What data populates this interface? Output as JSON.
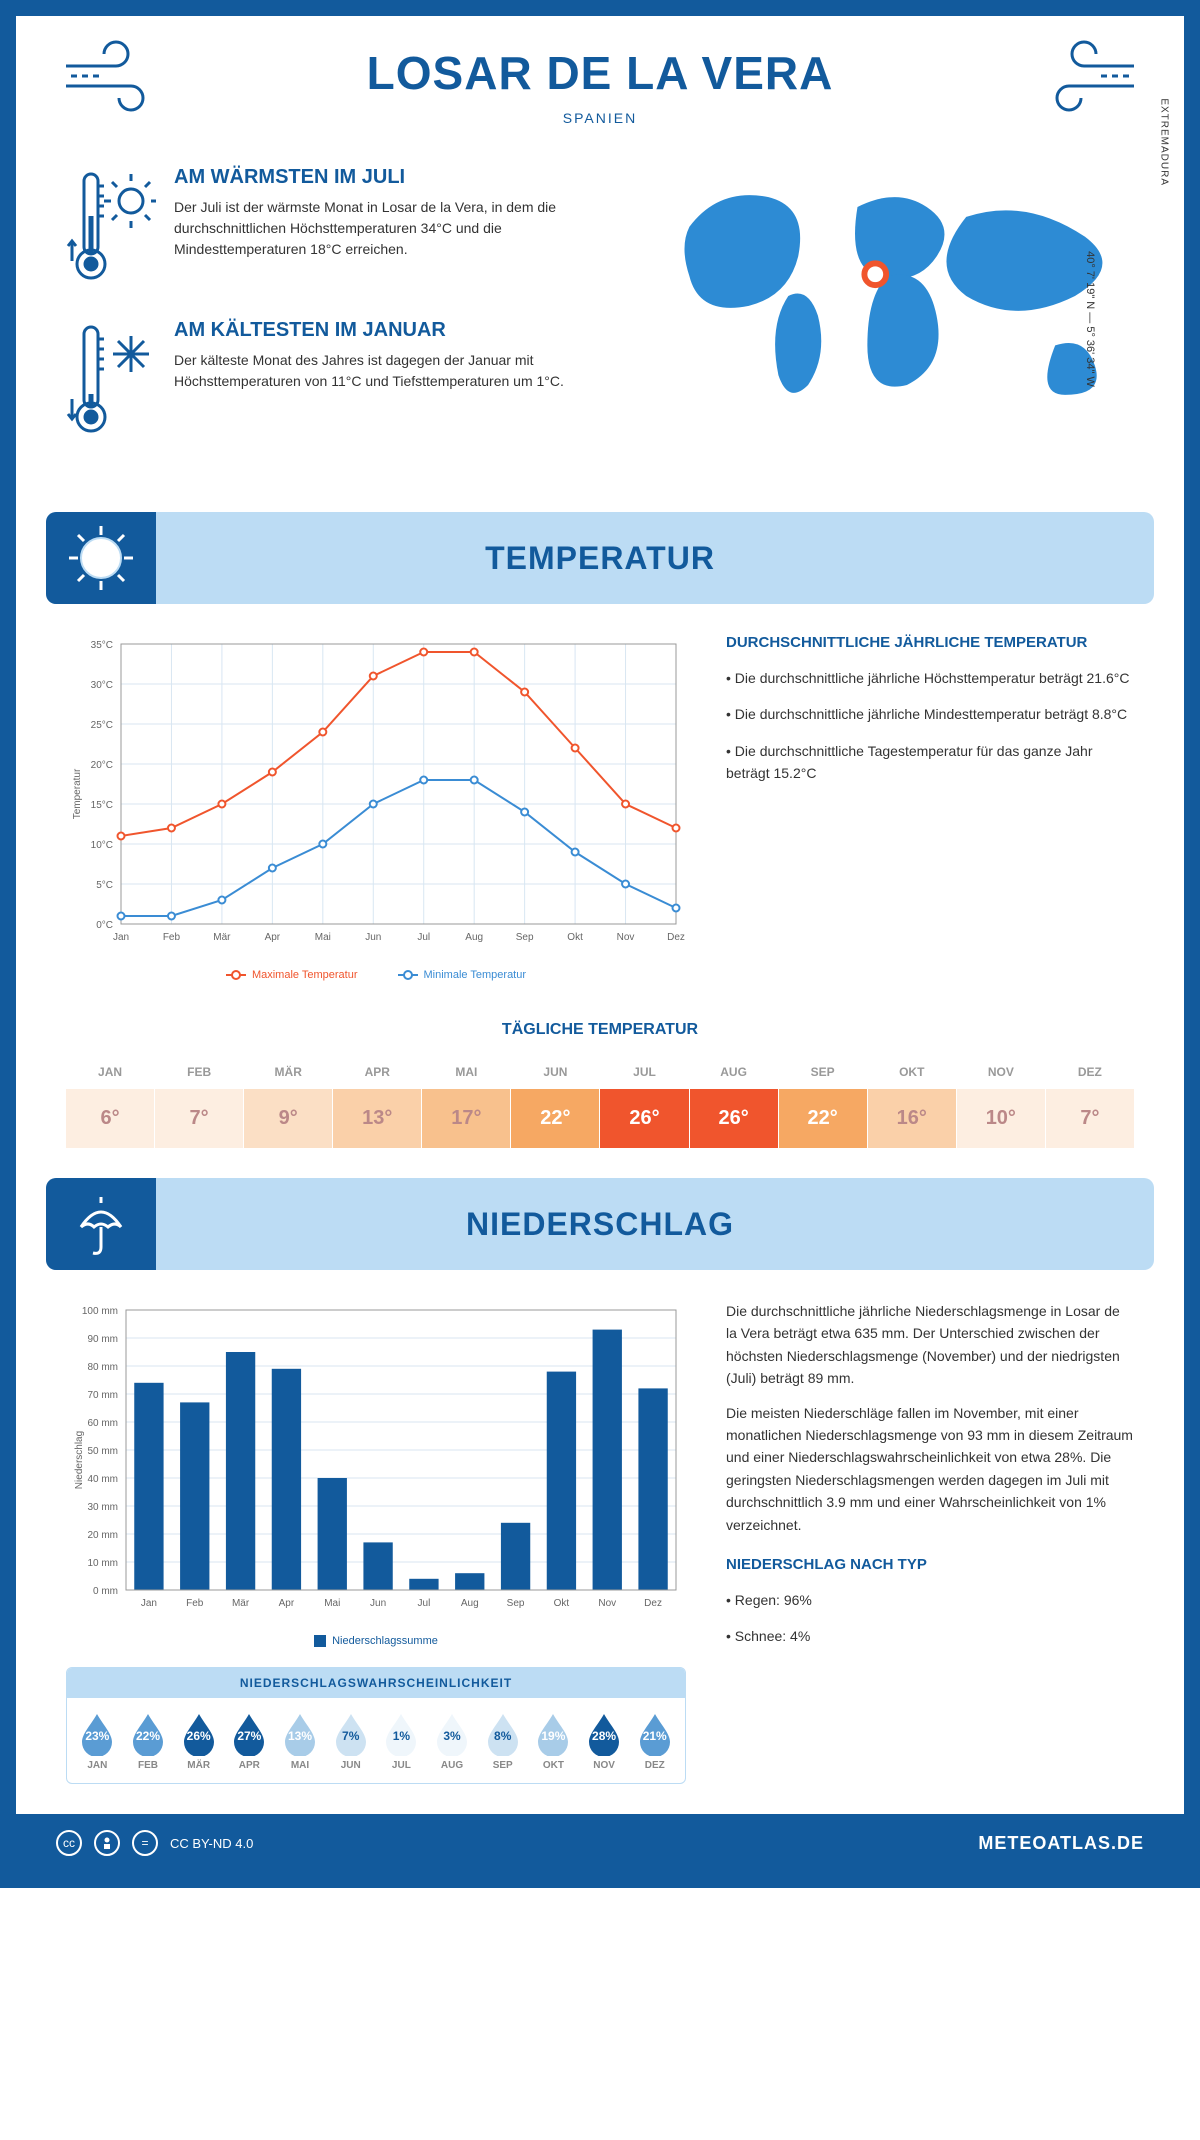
{
  "header": {
    "title": "LOSAR DE LA VERA",
    "subtitle": "SPANIEN"
  },
  "location": {
    "region": "EXTREMADURA",
    "coords": "40° 7' 19\" N — 5° 36' 34\" W"
  },
  "facts": {
    "warm": {
      "heading": "AM WÄRMSTEN IM JULI",
      "text": "Der Juli ist der wärmste Monat in Losar de la Vera, in dem die durchschnittlichen Höchsttemperaturen 34°C und die Mindesttemperaturen 18°C erreichen."
    },
    "cold": {
      "heading": "AM KÄLTESTEN IM JANUAR",
      "text": "Der kälteste Monat des Jahres ist dagegen der Januar mit Höchsttemperaturen von 11°C und Tiefsttemperaturen um 1°C."
    }
  },
  "temperature": {
    "section_title": "TEMPERATUR",
    "avg_heading": "DURCHSCHNITTLICHE JÄHRLICHE TEMPERATUR",
    "bullets": [
      "Die durchschnittliche jährliche Höchsttemperatur beträgt 21.6°C",
      "Die durchschnittliche jährliche Mindesttemperatur beträgt 8.8°C",
      "Die durchschnittliche Tagestemperatur für das ganze Jahr beträgt 15.2°C"
    ],
    "chart": {
      "type": "line",
      "months": [
        "Jan",
        "Feb",
        "Mär",
        "Apr",
        "Mai",
        "Jun",
        "Jul",
        "Aug",
        "Sep",
        "Okt",
        "Nov",
        "Dez"
      ],
      "max_series": [
        11,
        12,
        15,
        19,
        24,
        31,
        34,
        34,
        29,
        22,
        15,
        12
      ],
      "min_series": [
        1,
        1,
        3,
        7,
        10,
        15,
        18,
        18,
        14,
        9,
        5,
        2
      ],
      "ylim": [
        0,
        35
      ],
      "ytick_step": 5,
      "ylabel": "Temperatur",
      "max_color": "#f0552d",
      "min_color": "#3a8cd4",
      "grid_color": "#d8e6f2",
      "legend_max": "Maximale Temperatur",
      "legend_min": "Minimale Temperatur"
    },
    "daily_title": "TÄGLICHE TEMPERATUR",
    "daily": {
      "months": [
        "JAN",
        "FEB",
        "MÄR",
        "APR",
        "MAI",
        "JUN",
        "JUL",
        "AUG",
        "SEP",
        "OKT",
        "NOV",
        "DEZ"
      ],
      "values": [
        "6°",
        "7°",
        "9°",
        "13°",
        "17°",
        "22°",
        "26°",
        "26°",
        "22°",
        "16°",
        "10°",
        "7°"
      ],
      "bg_colors": [
        "#fdeee1",
        "#fdeee1",
        "#fbdfc5",
        "#fad0a9",
        "#f8c18d",
        "#f6a863",
        "#f0552d",
        "#f0552d",
        "#f6a863",
        "#fad0a9",
        "#fdeee1",
        "#fdeee1"
      ],
      "text_colors": [
        "#b88",
        "#b88",
        "#b88",
        "#b88",
        "#b88",
        "#fff",
        "#fff",
        "#fff",
        "#fff",
        "#b88",
        "#b88",
        "#b88"
      ]
    }
  },
  "precipitation": {
    "section_title": "NIEDERSCHLAG",
    "chart": {
      "type": "bar",
      "months": [
        "Jan",
        "Feb",
        "Mär",
        "Apr",
        "Mai",
        "Jun",
        "Jul",
        "Aug",
        "Sep",
        "Okt",
        "Nov",
        "Dez"
      ],
      "values": [
        74,
        67,
        85,
        79,
        40,
        17,
        4,
        6,
        24,
        78,
        93,
        72
      ],
      "ylim": [
        0,
        100
      ],
      "ytick_step": 10,
      "ylabel": "Niederschlag",
      "bar_color": "#125a9c",
      "grid_color": "#d8e6f2",
      "legend": "Niederschlagssumme"
    },
    "text1": "Die durchschnittliche jährliche Niederschlagsmenge in Losar de la Vera beträgt etwa 635 mm. Der Unterschied zwischen der höchsten Niederschlagsmenge (November) und der niedrigsten (Juli) beträgt 89 mm.",
    "text2": "Die meisten Niederschläge fallen im November, mit einer monatlichen Niederschlagsmenge von 93 mm in diesem Zeitraum und einer Niederschlagswahrscheinlichkeit von etwa 28%. Die geringsten Niederschlagsmengen werden dagegen im Juli mit durchschnittlich 3.9 mm und einer Wahrscheinlichkeit von 1% verzeichnet.",
    "type_heading": "NIEDERSCHLAG NACH TYP",
    "type_bullets": [
      "Regen: 96%",
      "Schnee: 4%"
    ],
    "probability": {
      "heading": "NIEDERSCHLAGSWAHRSCHEINLICHKEIT",
      "months": [
        "JAN",
        "FEB",
        "MÄR",
        "APR",
        "MAI",
        "JUN",
        "JUL",
        "AUG",
        "SEP",
        "OKT",
        "NOV",
        "DEZ"
      ],
      "values": [
        "23%",
        "22%",
        "26%",
        "27%",
        "13%",
        "7%",
        "1%",
        "3%",
        "8%",
        "19%",
        "28%",
        "21%"
      ],
      "fills": [
        "#5a9cd4",
        "#5a9cd4",
        "#125a9c",
        "#125a9c",
        "#a8cce8",
        "#cde2f2",
        "#eff6fb",
        "#eff6fb",
        "#cde2f2",
        "#a8cce8",
        "#125a9c",
        "#5a9cd4"
      ],
      "label_colors": [
        "#fff",
        "#fff",
        "#fff",
        "#fff",
        "#fff",
        "#125a9c",
        "#125a9c",
        "#125a9c",
        "#125a9c",
        "#fff",
        "#fff",
        "#fff"
      ]
    }
  },
  "footer": {
    "license": "CC BY-ND 4.0",
    "brand": "METEOATLAS.DE"
  },
  "colors": {
    "primary": "#125a9c",
    "light": "#bcdcf4"
  }
}
